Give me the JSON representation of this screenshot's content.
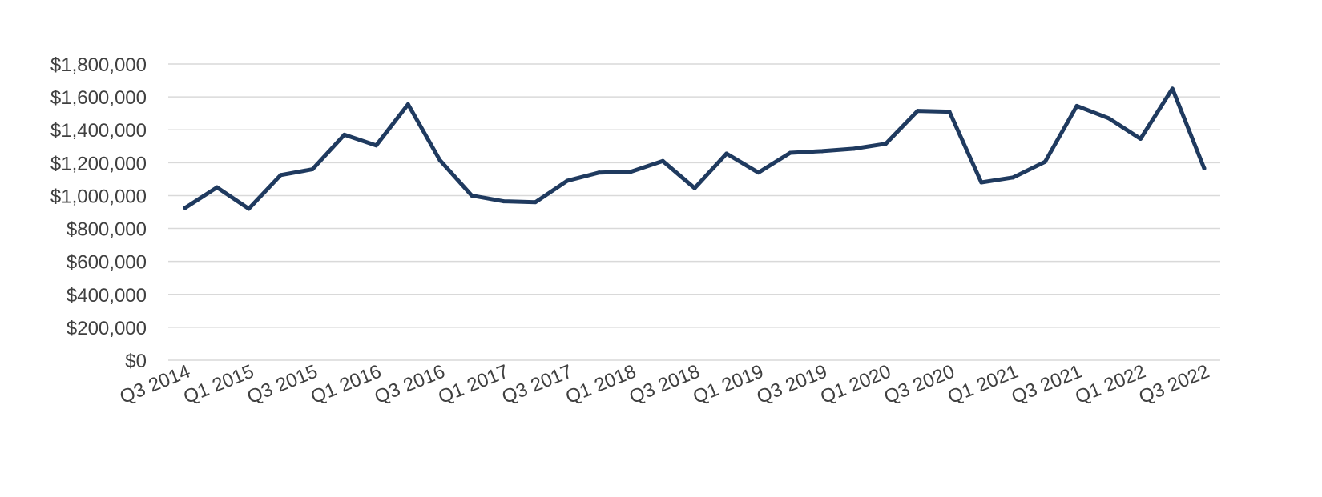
{
  "chart_data": {
    "type": "line",
    "title": "",
    "xlabel": "",
    "ylabel": "",
    "ylim": [
      0,
      1800000
    ],
    "yticks": [
      0,
      200000,
      400000,
      600000,
      800000,
      1000000,
      1200000,
      1400000,
      1600000,
      1800000
    ],
    "ytick_labels": [
      "$0",
      "$200,000",
      "$400,000",
      "$600,000",
      "$800,000",
      "$1,000,000",
      "$1,200,000",
      "$1,400,000",
      "$1,600,000",
      "$1,800,000"
    ],
    "grid": true,
    "legend": "none",
    "line_color": "#1f3a5f",
    "categories": [
      "Q3 2014",
      "Q4 2014",
      "Q1 2015",
      "Q2 2015",
      "Q3 2015",
      "Q4 2015",
      "Q1 2016",
      "Q2 2016",
      "Q3 2016",
      "Q4 2016",
      "Q1 2017",
      "Q2 2017",
      "Q3 2017",
      "Q4 2017",
      "Q1 2018",
      "Q2 2018",
      "Q3 2018",
      "Q4 2018",
      "Q1 2019",
      "Q2 2019",
      "Q3 2019",
      "Q4 2019",
      "Q1 2020",
      "Q2 2020",
      "Q3 2020",
      "Q4 2020",
      "Q1 2021",
      "Q2 2021",
      "Q3 2021",
      "Q4 2021",
      "Q1 2022",
      "Q2 2022",
      "Q3 2022"
    ],
    "xtick_labels": [
      "Q3 2014",
      "Q1 2015",
      "Q3 2015",
      "Q1 2016",
      "Q3 2016",
      "Q1 2017",
      "Q3 2017",
      "Q1 2018",
      "Q3 2018",
      "Q1 2019",
      "Q3 2019",
      "Q1 2020",
      "Q3 2020",
      "Q1 2021",
      "Q3 2021",
      "Q1 2022",
      "Q3 2022"
    ],
    "series": [
      {
        "values": [
          925000,
          1050000,
          920000,
          1125000,
          1160000,
          1370000,
          1305000,
          1555000,
          1215000,
          1000000,
          965000,
          960000,
          1090000,
          1140000,
          1145000,
          1210000,
          1045000,
          1255000,
          1140000,
          1260000,
          1270000,
          1285000,
          1315000,
          1515000,
          1510000,
          1080000,
          1110000,
          1205000,
          1545000,
          1470000,
          1345000,
          1650000,
          1165000
        ]
      }
    ]
  }
}
